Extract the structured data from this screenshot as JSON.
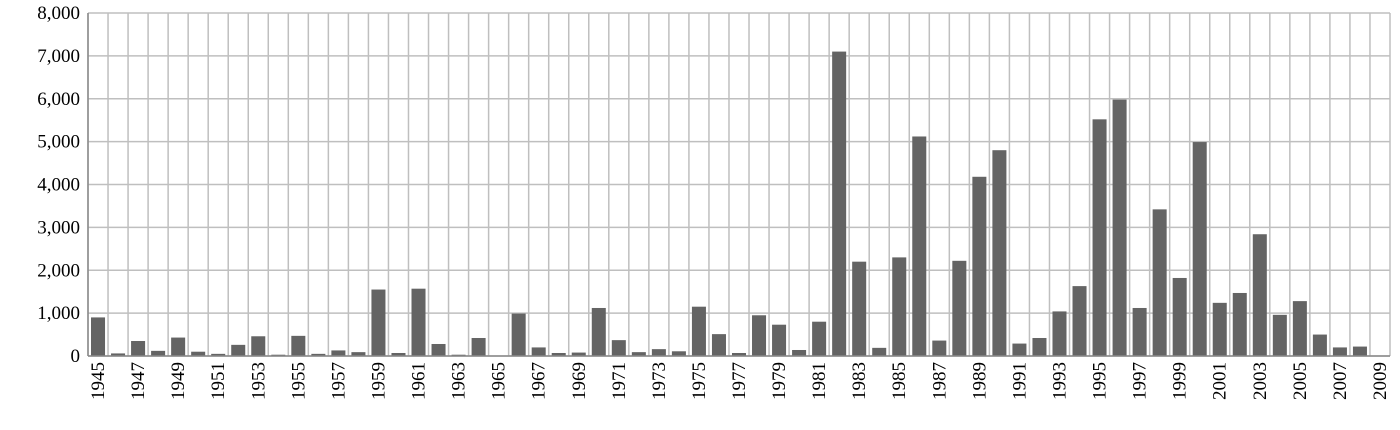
{
  "chart_data": {
    "type": "bar",
    "categories": [
      "1945",
      null,
      "1947",
      null,
      "1949",
      null,
      "1951",
      null,
      "1953",
      null,
      "1955",
      null,
      "1957",
      null,
      "1959",
      null,
      "1961",
      null,
      "1963",
      null,
      "1965",
      null,
      "1967",
      null,
      "1969",
      null,
      "1971",
      null,
      "1973",
      null,
      "1975",
      null,
      "1977",
      null,
      "1979",
      null,
      "1981",
      null,
      "1983",
      null,
      "1985",
      null,
      "1987",
      null,
      "1989",
      null,
      "1991",
      null,
      "1993",
      null,
      "1995",
      null,
      "1997",
      null,
      "1999",
      null,
      "2001",
      null,
      "2003",
      null,
      "2005",
      null,
      "2007",
      null,
      "2009"
    ],
    "values": [
      900,
      60,
      350,
      120,
      430,
      100,
      50,
      260,
      460,
      30,
      470,
      50,
      130,
      90,
      1550,
      70,
      1570,
      280,
      30,
      420,
      10,
      990,
      200,
      70,
      80,
      1120,
      370,
      90,
      160,
      110,
      1150,
      510,
      70,
      950,
      730,
      140,
      800,
      7100,
      2200,
      190,
      2300,
      5120,
      360,
      2220,
      4180,
      4800,
      290,
      420,
      1040,
      1630,
      5520,
      5980,
      1120,
      3420,
      1820,
      4990,
      1240,
      1470,
      2840,
      960,
      1280,
      500,
      200,
      220,
      0
    ],
    "color": "#646464",
    "ylim": [
      0,
      8000
    ],
    "yticks": [
      0,
      {
        "value": 1000,
        "label": "1,000"
      },
      {
        "value": 2000,
        "label": "2,000"
      },
      {
        "value": 3000,
        "label": "3,000"
      },
      {
        "value": 4000,
        "label": "4,000"
      },
      {
        "value": 5000,
        "label": "5,000"
      },
      {
        "value": 6000,
        "label": "6,000"
      },
      {
        "value": 7000,
        "label": "7,000"
      },
      {
        "value": 8000,
        "label": "8,000"
      }
    ],
    "grid": true
  }
}
